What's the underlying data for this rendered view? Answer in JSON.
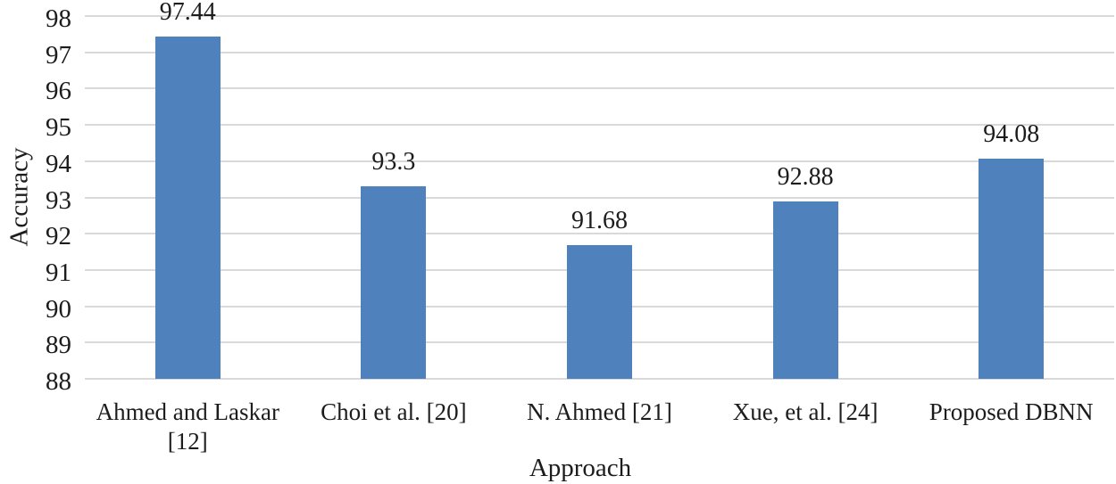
{
  "chart_data": {
    "type": "bar",
    "title": "",
    "categories": [
      "Ahmed and Laskar [12]",
      "Choi et al. [20]",
      "N. Ahmed [21]",
      "Xue, et al. [24]",
      "Proposed DBNN"
    ],
    "values": [
      97.44,
      93.3,
      91.68,
      92.88,
      94.08
    ],
    "value_labels": [
      "97.44",
      "93.3",
      "91.68",
      "92.88",
      "94.08"
    ],
    "xlabel": "Approach",
    "ylabel": "Accuracy",
    "ylim": [
      88,
      98
    ],
    "yticks": [
      98,
      97,
      96,
      95,
      94,
      93,
      92,
      91,
      90,
      89,
      88
    ],
    "grid": true,
    "legend_position": "none",
    "bar_color": "#4f81bd",
    "gridline_color": "#d9d9d9",
    "text_color": "#1c1c1c"
  }
}
